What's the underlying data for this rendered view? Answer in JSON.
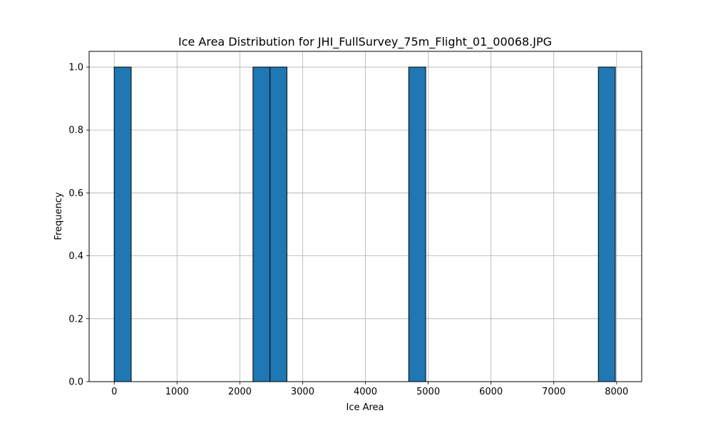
{
  "chart_data": {
    "type": "bar",
    "title": "Ice Area Distribution for JHI_FullSurvey_75m_Flight_01_00068.JPG",
    "xlabel": "Ice Area",
    "ylabel": "Frequency",
    "xlim": [
      -400,
      8400
    ],
    "ylim": [
      0,
      1.05
    ],
    "xticks": [
      0,
      1000,
      2000,
      3000,
      4000,
      5000,
      6000,
      7000,
      8000
    ],
    "yticks": [
      "0.0",
      "0.2",
      "0.4",
      "0.6",
      "0.8",
      "1.0"
    ],
    "grid": true,
    "bar_color": "#1f77b4",
    "edge_color": "#000000",
    "bins": [
      {
        "x0": 0,
        "x1": 270,
        "count": 1
      },
      {
        "x0": 2210,
        "x1": 2480,
        "count": 1
      },
      {
        "x0": 2480,
        "x1": 2750,
        "count": 1
      },
      {
        "x0": 4690,
        "x1": 4960,
        "count": 1
      },
      {
        "x0": 7710,
        "x1": 7980,
        "count": 1
      }
    ]
  }
}
